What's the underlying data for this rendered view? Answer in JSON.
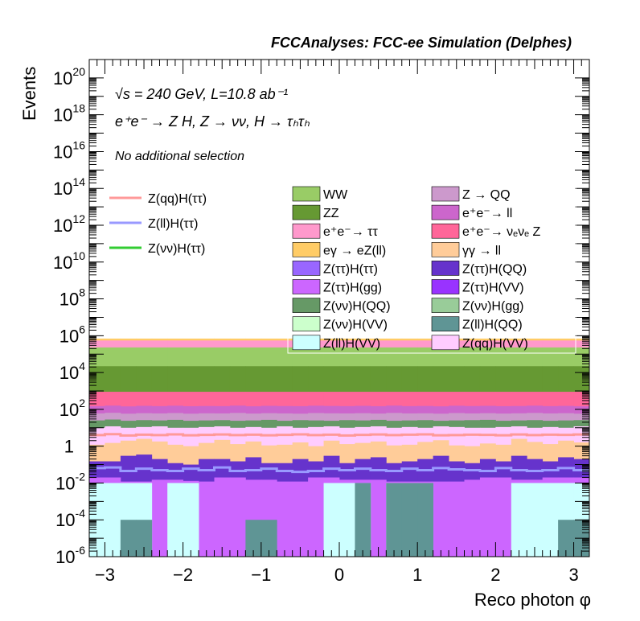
{
  "chart_data": {
    "type": "bar",
    "stacked": true,
    "title": "FCCAnalyses: FCC-ee Simulation (Delphes)",
    "xlabel": "Reco photon φ",
    "ylabel": "Events",
    "xlim": [
      -3.2,
      3.2
    ],
    "ylim": [
      1e-06,
      1e+21
    ],
    "ylog": true,
    "bins": 32,
    "x_ticks": [
      "−3",
      "−2",
      "−1",
      "0",
      "1",
      "2",
      "3"
    ],
    "y_ticks": [
      {
        "mant": "10",
        "exp": "-6",
        "value": 1e-06
      },
      {
        "mant": "10",
        "exp": "-4",
        "value": 0.0001
      },
      {
        "mant": "10",
        "exp": "-2",
        "value": 0.01
      },
      {
        "mant": "1",
        "exp": "",
        "value": 1
      },
      {
        "mant": "10",
        "exp": "2",
        "value": 100.0
      },
      {
        "mant": "10",
        "exp": "4",
        "value": 10000.0
      },
      {
        "mant": "10",
        "exp": "6",
        "value": 1000000.0
      },
      {
        "mant": "10",
        "exp": "8",
        "value": 100000000.0
      },
      {
        "mant": "10",
        "exp": "10",
        "value": 10000000000.0
      },
      {
        "mant": "10",
        "exp": "12",
        "value": 1000000000000.0
      },
      {
        "mant": "10",
        "exp": "14",
        "value": 100000000000000.0
      },
      {
        "mant": "10",
        "exp": "16",
        "value": 1e+16
      },
      {
        "mant": "10",
        "exp": "18",
        "value": 1e+18
      },
      {
        "mant": "10",
        "exp": "20",
        "value": 1e+20
      }
    ],
    "annotations": {
      "energy": "√s = 240 GeV, L=10.8 ab⁻¹",
      "process": "e⁺e⁻ → Z H, Z → νν, H → τₕτₕ",
      "selection": "No additional selection"
    },
    "stack_boundaries": [
      {
        "name": "Z(ll)H(QQ)",
        "color": "#5f9595",
        "values": [
          1e-06,
          1e-06,
          0.0001,
          0.0001,
          1e-06,
          1e-06,
          1e-06,
          1e-06,
          1e-06,
          1e-06,
          0.0001,
          0.0001,
          1e-06,
          1e-06,
          1e-06,
          1e-06,
          1e-06,
          0.01,
          1e-06,
          0.01,
          0.01,
          0.01,
          1e-06,
          1e-06,
          1e-06,
          1e-06,
          1e-06,
          1e-06,
          1e-06,
          1e-06,
          0.0001,
          0.0001
        ]
      },
      {
        "name": "Z(ll)H(VV)",
        "color": "#ccffff",
        "values": [
          0.01,
          0.01,
          0.01,
          0.01,
          1e-06,
          0.01,
          0.01,
          1e-06,
          1e-06,
          1e-06,
          1e-06,
          1e-06,
          1e-06,
          1e-06,
          1e-06,
          0.01,
          0.01,
          0.01,
          1e-06,
          0.01,
          0.01,
          0.01,
          1e-06,
          1e-06,
          1e-06,
          1e-06,
          1e-06,
          0.01,
          0.01,
          0.01,
          0.01,
          0.01
        ]
      },
      {
        "name": "Z(ττ)H(gg)",
        "color": "#cc66ff",
        "values": [
          0.02,
          0.02,
          0.012,
          0.012,
          0.015,
          0.015,
          0.013,
          0.012,
          0.02,
          0.02,
          0.015,
          0.015,
          0.012,
          0.012,
          0.02,
          0.02,
          0.015,
          0.015,
          0.015,
          0.012,
          0.012,
          0.012,
          0.012,
          0.012,
          0.015,
          0.02,
          0.02,
          0.015,
          0.015,
          0.02,
          0.02,
          0.02
        ]
      },
      {
        "name": "Z(ττ)H(QQ)",
        "color": "#6633cc",
        "values": [
          0.15,
          0.15,
          0.3,
          0.35,
          0.2,
          0.12,
          0.1,
          0.2,
          0.2,
          0.15,
          0.25,
          0.12,
          0.12,
          0.2,
          0.15,
          0.3,
          0.12,
          0.2,
          0.25,
          0.12,
          0.15,
          0.2,
          0.3,
          0.15,
          0.12,
          0.2,
          0.15,
          0.3,
          0.2,
          0.15,
          0.25,
          0.2
        ]
      },
      {
        "name": "γγ → ll",
        "color": "#ffcc99",
        "values": [
          1.2,
          1.5,
          2.0,
          2.5,
          1.8,
          1.2,
          1.0,
          1.5,
          2.2,
          1.3,
          1.8,
          1.1,
          1.2,
          1.6,
          1.0,
          2.0,
          1.3,
          1.5,
          1.8,
          1.1,
          1.2,
          1.7,
          2.1,
          1.1,
          1.0,
          1.4,
          1.2,
          2.5,
          1.7,
          1.3,
          2.0,
          1.6
        ]
      },
      {
        "name": "Z(qq)H(VV)",
        "color": "#ffccff",
        "values": [
          10,
          12,
          10,
          11,
          12,
          10,
          10,
          11,
          12,
          10,
          11,
          10,
          12,
          10,
          11,
          12,
          10,
          11,
          12,
          10,
          11,
          10,
          12,
          11,
          10,
          10,
          11,
          12,
          10,
          11,
          10,
          12
        ]
      },
      {
        "name": "Z(νν)H(QQ)",
        "color": "#669966",
        "values": [
          25,
          28,
          24,
          26,
          25,
          27,
          24,
          25,
          26,
          24,
          25,
          27,
          24,
          26,
          25,
          24,
          26,
          25,
          27,
          24,
          25,
          26,
          24,
          25,
          26,
          27,
          24,
          25,
          26,
          24,
          25,
          26
        ]
      },
      {
        "name": "Z → QQ",
        "color": "#cc99cc",
        "values": [
          60,
          65,
          58,
          62,
          60,
          63,
          58,
          61,
          60,
          64,
          59,
          62,
          60,
          58,
          63,
          61,
          60,
          62,
          59,
          64,
          60,
          61,
          58,
          63,
          60,
          62,
          59,
          61,
          64,
          60,
          62,
          58
        ]
      },
      {
        "name": "e⁺e⁻ → ll",
        "color": "#cc66cc",
        "values": [
          150,
          160,
          145,
          155,
          150,
          158,
          148,
          152,
          150,
          160,
          147,
          155,
          151,
          149,
          158,
          153,
          150,
          155,
          148,
          160,
          150,
          153,
          146,
          157,
          151,
          155,
          149,
          152,
          159,
          150,
          154,
          147
        ]
      },
      {
        "name": "e⁺e⁻ → ν_eν_e Z",
        "color": "#ff6699",
        "values": [
          900,
          900,
          900,
          900,
          900,
          900,
          900,
          900,
          900,
          900,
          900,
          900,
          900,
          900,
          900,
          900,
          900,
          900,
          900,
          900,
          900,
          900,
          900,
          900,
          900,
          900,
          900,
          900,
          900,
          900,
          900,
          900
        ]
      },
      {
        "name": "ZZ",
        "color": "#669933",
        "values": [
          22000,
          22000,
          22000,
          22000,
          22000,
          22000,
          22000,
          22000,
          22000,
          22000,
          22000,
          22000,
          22000,
          22000,
          22000,
          22000,
          22000,
          22000,
          22000,
          22000,
          22000,
          22000,
          22000,
          22000,
          22000,
          22000,
          22000,
          22000,
          22000,
          22000,
          22000,
          22000
        ]
      },
      {
        "name": "WW",
        "color": "#99cc66",
        "values": [
          230000,
          230000,
          230000,
          230000,
          230000,
          230000,
          230000,
          230000,
          230000,
          230000,
          230000,
          230000,
          230000,
          230000,
          230000,
          230000,
          230000,
          230000,
          230000,
          230000,
          230000,
          230000,
          230000,
          230000,
          230000,
          230000,
          230000,
          230000,
          230000,
          230000,
          230000,
          230000
        ]
      },
      {
        "name": "e⁺e⁻ → ττ",
        "color": "#ff99cc",
        "values": [
          550000,
          550000,
          550000,
          550000,
          550000,
          550000,
          550000,
          550000,
          550000,
          550000,
          550000,
          550000,
          550000,
          550000,
          550000,
          550000,
          550000,
          550000,
          550000,
          550000,
          550000,
          550000,
          550000,
          550000,
          550000,
          550000,
          550000,
          550000,
          550000,
          550000,
          550000,
          550000
        ]
      },
      {
        "name": "eγ → eZ(ll)",
        "color": "#ffcc66",
        "values": [
          700000,
          700000,
          700000,
          700000,
          700000,
          700000,
          700000,
          700000,
          700000,
          700000,
          700000,
          700000,
          700000,
          700000,
          700000,
          700000,
          700000,
          700000,
          700000,
          700000,
          700000,
          700000,
          700000,
          700000,
          700000,
          700000,
          700000,
          700000,
          700000,
          700000,
          700000,
          700000
        ]
      }
    ],
    "lines": [
      {
        "name": "Z(qq)H(ττ)",
        "color": "#ff9999",
        "values": [
          4,
          4.5,
          3.8,
          4.2,
          4,
          4.4,
          3.9,
          4.1,
          4.3,
          4,
          4.2,
          3.9,
          4.1,
          4.4,
          4,
          4.2,
          3.8,
          4.1,
          4.3,
          4,
          4.2,
          4.4,
          3.9,
          4,
          4.2,
          4.1,
          3.9,
          4.3,
          4,
          4.2,
          4.1,
          4.3
        ]
      },
      {
        "name": "Z(ll)H(ττ)",
        "color": "#9999ff",
        "values": [
          0.065,
          0.07,
          0.045,
          0.06,
          0.05,
          0.045,
          0.06,
          0.05,
          0.07,
          0.045,
          0.05,
          0.06,
          0.045,
          0.04,
          0.045,
          0.06,
          0.05,
          0.06,
          0.05,
          0.045,
          0.06,
          0.05,
          0.065,
          0.055,
          0.05,
          0.045,
          0.065,
          0.05,
          0.045,
          0.05,
          0.065,
          0.05
        ]
      },
      {
        "name": "Z(νν)H(ττ)",
        "color": "#33cc33",
        "values": []
      }
    ],
    "legend": {
      "placement": "top",
      "lines": [
        {
          "name": "Z(qq)H(ττ)",
          "color": "#ff9999"
        },
        {
          "name": "Z(ll)H(ττ)",
          "color": "#9999ff"
        },
        {
          "name": "Z(νν)H(ττ)",
          "color": "#33cc33"
        }
      ],
      "boxes_left": [
        {
          "name": "WW",
          "color": "#99cc66"
        },
        {
          "name": "ZZ",
          "color": "#669933"
        },
        {
          "name": "e⁺e⁻→ ττ",
          "color": "#ff99cc"
        },
        {
          "name": "eγ → eZ(ll)",
          "color": "#ffcc66"
        },
        {
          "name": "Z(ττ)H(ττ)",
          "color": "#9966ff"
        },
        {
          "name": "Z(ττ)H(gg)",
          "color": "#cc66ff"
        },
        {
          "name": "Z(νν)H(QQ)",
          "color": "#669966"
        },
        {
          "name": "Z(νν)H(VV)",
          "color": "#ccffcc"
        },
        {
          "name": "Z(ll)H(VV)",
          "color": "#ccffff"
        }
      ],
      "boxes_right": [
        {
          "name": "Z → QQ",
          "color": "#cc99cc"
        },
        {
          "name": "e⁺e⁻→ ll",
          "color": "#cc66cc"
        },
        {
          "name": "e⁺e⁻→ νₑνₑ Z",
          "color": "#ff6699"
        },
        {
          "name": "γγ → ll",
          "color": "#ffcc99"
        },
        {
          "name": "Z(ττ)H(QQ)",
          "color": "#6633cc"
        },
        {
          "name": "Z(ττ)H(VV)",
          "color": "#9933ff"
        },
        {
          "name": "Z(νν)H(gg)",
          "color": "#99cc99"
        },
        {
          "name": "Z(ll)H(QQ)",
          "color": "#5f9595"
        },
        {
          "name": "Z(qq)H(VV)",
          "color": "#ffccff"
        }
      ]
    }
  }
}
